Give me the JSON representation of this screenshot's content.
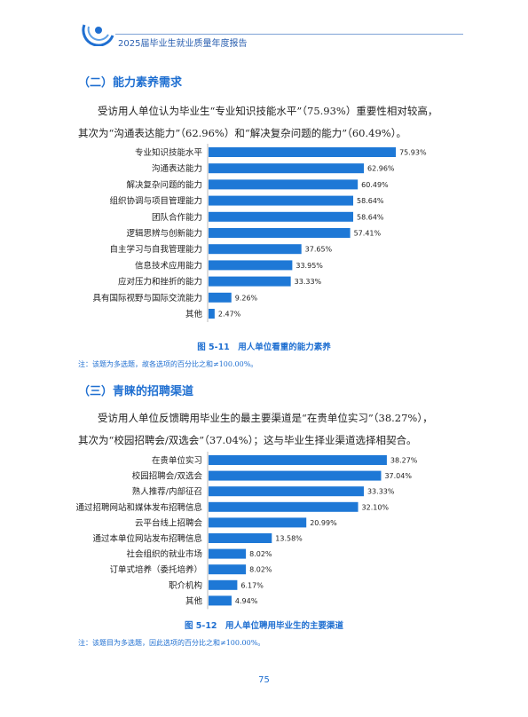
{
  "header": {
    "title": "2025届毕业生就业质量年度报告"
  },
  "section1": {
    "title": "（二）能力素养需求",
    "paragraph_line1": "受访用人单位认为毕业生“专业知识技能水平”（75.93%）重要性相对较高，",
    "paragraph_line2": "其次为“沟通表达能力”（62.96%）和“解决复杂问题的能力”（60.49%）。"
  },
  "chart1_caption": "图 5-11　用人单位看重的能力素养",
  "chart1_note": "注：该题为多选题，故各选项的百分比之和≠100.00%。",
  "section2": {
    "title": "（三）青睐的招聘渠道",
    "paragraph_line1": "受访用人单位反馈聘用毕业生的最主要渠道是“在贵单位实习”（38.27%），",
    "paragraph_line2": "其次为“校园招聘会/双选会”（37.04%）；这与毕业生择业渠道选择相契合。"
  },
  "chart2_caption": "图 5-12　用人单位聘用毕业生的主要渠道",
  "chart2_note": "注：该题目为多选题，因此选项的百分比之和≠100.00%。",
  "page_number": "75",
  "colors": {
    "bar": "#1e78d6",
    "accent": "#1f6fd1"
  },
  "chart_data": [
    {
      "type": "bar",
      "orientation": "horizontal",
      "title": "图 5-11　用人单位看重的能力素养",
      "categories": [
        "专业知识技能水平",
        "沟通表达能力",
        "解决复杂问题的能力",
        "组织协调与项目管理能力",
        "团队合作能力",
        "逻辑思辨与创新能力",
        "自主学习与自我管理能力",
        "信息技术应用能力",
        "应对压力和挫折的能力",
        "具有国际视野与国际交流能力",
        "其他"
      ],
      "values": [
        75.93,
        62.96,
        60.49,
        58.64,
        58.64,
        57.41,
        37.65,
        33.95,
        33.33,
        9.26,
        2.47
      ],
      "value_labels": [
        "75.93%",
        "62.96%",
        "60.49%",
        "58.64%",
        "58.64%",
        "57.41%",
        "37.65%",
        "33.95%",
        "33.33%",
        "9.26%",
        "2.47%"
      ],
      "xlim": [
        0,
        100
      ],
      "grid": false,
      "legend": "none"
    },
    {
      "type": "bar",
      "orientation": "horizontal",
      "title": "图 5-12　用人单位聘用毕业生的主要渠道",
      "categories": [
        "在贵单位实习",
        "校园招聘会/双选会",
        "熟人推荐/内部征召",
        "通过招聘网站和媒体发布招聘信息",
        "云平台线上招聘会",
        "通过本单位网站发布招聘信息",
        "社会组织的就业市场",
        "订单式培养（委托培养）",
        "职介机构",
        "其他"
      ],
      "values": [
        38.27,
        37.04,
        33.33,
        32.1,
        20.99,
        13.58,
        8.02,
        8.02,
        6.17,
        4.94
      ],
      "value_labels": [
        "38.27%",
        "37.04%",
        "33.33%",
        "32.10%",
        "20.99%",
        "13.58%",
        "8.02%",
        "8.02%",
        "6.17%",
        "4.94%"
      ],
      "xlim": [
        0,
        50
      ],
      "grid": false,
      "legend": "none"
    }
  ]
}
